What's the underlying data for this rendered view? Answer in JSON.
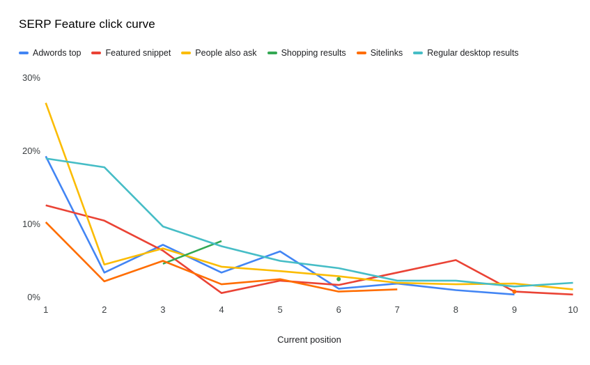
{
  "chart_title": "SERP Feature click curve",
  "chart_data": {
    "type": "line",
    "title": "SERP Feature click curve",
    "grid": false,
    "legend_position": "top",
    "x": [
      1,
      2,
      3,
      4,
      5,
      6,
      7,
      8,
      9,
      10
    ],
    "x_axis": {
      "title": "Current position",
      "ticks": [
        "1",
        "2",
        "3",
        "4",
        "5",
        "6",
        "7",
        "8",
        "9",
        "10"
      ]
    },
    "y_axis": {
      "unit": "%",
      "range": [
        0,
        30
      ],
      "ticks": [
        {
          "label": "0%",
          "value": 0
        },
        {
          "label": "10%",
          "value": 10
        },
        {
          "label": "20%",
          "value": 20
        },
        {
          "label": "30%",
          "value": 30
        }
      ]
    },
    "series": [
      {
        "name": "Adwords top",
        "color": "#4285F4",
        "values": [
          19.3,
          3.4,
          7.2,
          3.4,
          6.3,
          1.2,
          1.9,
          1.0,
          0.4,
          null
        ]
      },
      {
        "name": "Featured snippet",
        "color": "#EA4335",
        "values": [
          12.6,
          10.5,
          6.4,
          0.6,
          2.3,
          1.7,
          3.4,
          5.1,
          0.8,
          0.4
        ]
      },
      {
        "name": "People also ask",
        "color": "#FBBC04",
        "values": [
          26.6,
          4.5,
          6.7,
          4.2,
          3.6,
          2.9,
          2.0,
          1.8,
          1.9,
          1.1
        ]
      },
      {
        "name": "Shopping results",
        "color": "#34A853",
        "values": [
          null,
          null,
          4.6,
          7.7,
          null,
          2.5,
          null,
          null,
          null,
          null
        ]
      },
      {
        "name": "Sitelinks",
        "color": "#FF6D01",
        "values": [
          10.3,
          2.2,
          5.0,
          1.8,
          2.5,
          0.8,
          1.1,
          null,
          0.8,
          null
        ]
      },
      {
        "name": "Regular desktop results",
        "color": "#46BDC6",
        "values": [
          19.0,
          17.8,
          9.7,
          7.0,
          5.0,
          4.0,
          2.3,
          2.3,
          1.5,
          2.0
        ]
      }
    ]
  }
}
